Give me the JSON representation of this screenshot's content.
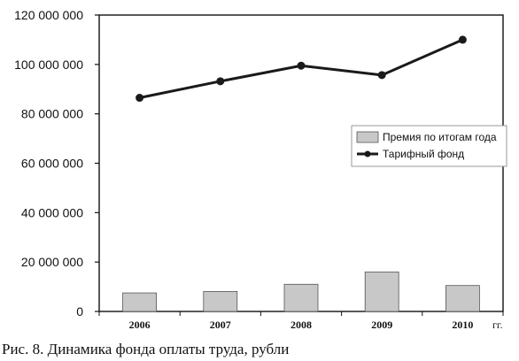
{
  "caption": "Рис. 8. Динамика фонда оплаты труда, рубли",
  "chart_data": {
    "type": "bar+line",
    "categories": [
      "2006",
      "2007",
      "2008",
      "2009",
      "2010"
    ],
    "x_unit_label": "гг.",
    "y_ticks": [
      "0",
      "20 000 000",
      "40 000 000",
      "60 000 000",
      "80 000 000",
      "100 000 000",
      "120 000 000"
    ],
    "ylim": [
      0,
      120000000
    ],
    "grid": false,
    "legend_position": "right",
    "series": [
      {
        "name": "Премия по итогам года",
        "type": "bar",
        "values": [
          7500000,
          8100000,
          11000000,
          16000000,
          10500000
        ],
        "color": "#c8c8c8"
      },
      {
        "name": "Тарифный фонд",
        "type": "line",
        "values": [
          86500000,
          93200000,
          99500000,
          95700000,
          110000000
        ],
        "color": "#1a1a1a"
      }
    ]
  }
}
